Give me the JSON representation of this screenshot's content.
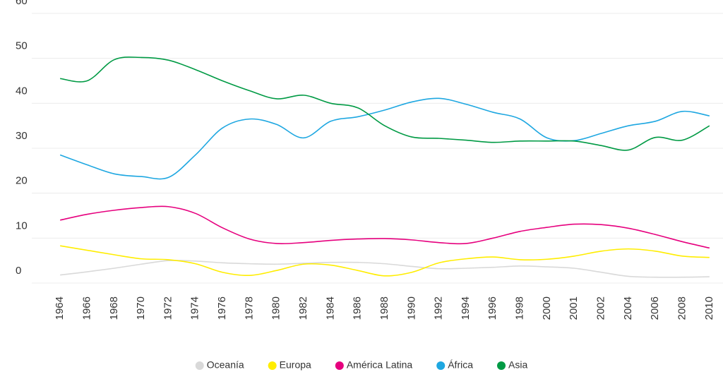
{
  "chart_data": {
    "type": "line",
    "categories": [
      "1964",
      "1966",
      "1968",
      "1970",
      "1972",
      "1974",
      "1976",
      "1978",
      "1980",
      "1982",
      "1984",
      "1986",
      "1988",
      "1990",
      "1992",
      "1994",
      "1996",
      "1998",
      "2000",
      "2001",
      "2002",
      "2004",
      "2006",
      "2008",
      "2010"
    ],
    "series": [
      {
        "name": "Oceanía",
        "color": "#d9d9d9",
        "values": [
          1.8,
          2.5,
          3.3,
          4.2,
          5,
          4.9,
          4.5,
          4.3,
          4.2,
          4.4,
          4.6,
          4.6,
          4.3,
          3.7,
          3.2,
          3.3,
          3.5,
          3.8,
          3.6,
          3.3,
          2.4,
          1.5,
          1.3,
          1.3,
          1.4
        ]
      },
      {
        "name": "Europa",
        "color": "#ffed00",
        "values": [
          8.3,
          7.3,
          6.3,
          5.4,
          5.2,
          4.3,
          2.4,
          1.7,
          2.8,
          4.2,
          4,
          2.8,
          1.6,
          2.4,
          4.5,
          5.4,
          5.8,
          5.2,
          5.3,
          6,
          7.1,
          7.6,
          7.1,
          6,
          5.7
        ]
      },
      {
        "name": "América Latina",
        "color": "#e6007e",
        "values": [
          14,
          15.3,
          16.2,
          16.8,
          17,
          15.5,
          12.3,
          9.8,
          8.8,
          9,
          9.5,
          9.8,
          9.9,
          9.6,
          9,
          8.8,
          10,
          11.5,
          12.4,
          13.1,
          13,
          12.2,
          10.8,
          9.2,
          7.8
        ]
      },
      {
        "name": "África",
        "color": "#1ea7e1",
        "values": [
          28.5,
          26.3,
          24.3,
          23.7,
          23.5,
          28.5,
          34.5,
          36.5,
          35.3,
          32.3,
          36,
          37,
          38.5,
          40.3,
          41.1,
          39.8,
          38,
          36.5,
          32.3,
          31.7,
          33.3,
          35,
          36,
          38.2,
          37.2
        ]
      },
      {
        "name": "Asia",
        "color": "#009a44",
        "values": [
          45.5,
          45,
          49.7,
          50.2,
          49.6,
          47.5,
          45,
          42.8,
          41,
          41.8,
          40,
          39,
          35,
          32.5,
          32.2,
          31.8,
          31.3,
          31.6,
          31.6,
          31.6,
          30.6,
          29.6,
          32.4,
          31.8,
          35
        ]
      }
    ],
    "ylim": [
      0,
      60
    ],
    "yticks": [
      0,
      10,
      20,
      30,
      40,
      50,
      60
    ],
    "grid": true
  }
}
